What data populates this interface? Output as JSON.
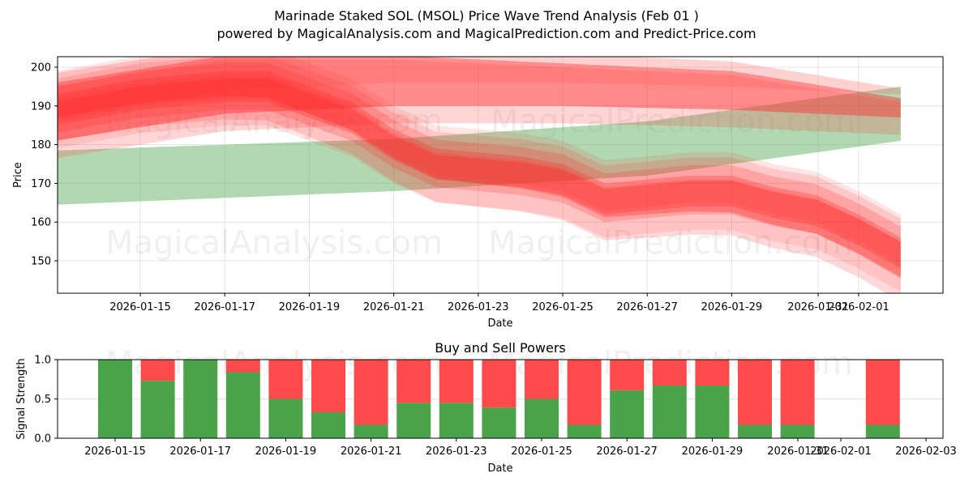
{
  "header": {
    "title": "Marinade Staked SOL (MSOL) Price Wave Trend Analysis (Feb 01 )",
    "subtitle": "powered by MagicalAnalysis.com and MagicalPrediction.com and Predict-Price.com"
  },
  "watermarks": [
    "MagicalAnalysis.com",
    "MagicalPrediction.com"
  ],
  "colors": {
    "buy": "#4aa34a",
    "sell": "#ff4b4b",
    "green_band": "#69b569",
    "red_band": "#ff2a2a"
  },
  "chart_data": [
    {
      "type": "area",
      "title": "Marinade Staked SOL (MSOL) Price Wave Trend Analysis (Feb 01 )",
      "xlabel": "Date",
      "ylabel": "Price",
      "ylim": [
        141.5,
        203
      ],
      "yticks": [
        150,
        160,
        170,
        180,
        190,
        200
      ],
      "xticks": [
        "2026-01-15",
        "2026-01-17",
        "2026-01-19",
        "2026-01-21",
        "2026-01-23",
        "2026-01-25",
        "2026-01-27",
        "2026-01-29",
        "2026-01-31",
        "2026-02-01"
      ],
      "grid": true,
      "series": [
        {
          "name": "Long-term uptrend band (green)",
          "x": [
            "2026-01-13",
            "2026-01-21",
            "2026-01-27",
            "2026-02-02"
          ],
          "upper": [
            178.5,
            181.5,
            186,
            195
          ],
          "lower": [
            164.5,
            168,
            172,
            181
          ]
        },
        {
          "name": "Long-term downtrend band (red, wide)",
          "x": [
            "2026-01-13",
            "2026-01-17",
            "2026-01-21",
            "2026-01-25",
            "2026-01-29",
            "2026-02-02"
          ],
          "upper": [
            196,
            203,
            203,
            201,
            199,
            192
          ],
          "lower": [
            181,
            188,
            190,
            190,
            189,
            187
          ]
        },
        {
          "name": "Short-term price wave (red)",
          "x": [
            "2026-01-13",
            "2026-01-15",
            "2026-01-17",
            "2026-01-18",
            "2026-01-19",
            "2026-01-20",
            "2026-01-21",
            "2026-01-22",
            "2026-01-23",
            "2026-01-24",
            "2026-01-25",
            "2026-01-26",
            "2026-01-27",
            "2026-01-28",
            "2026-01-29",
            "2026-01-30",
            "2026-01-31",
            "2026-02-01",
            "2026-02-02"
          ],
          "values": [
            189,
            193,
            195,
            195,
            191,
            187,
            180,
            175,
            174,
            173,
            171,
            166,
            167,
            168,
            168,
            165,
            163,
            158,
            152
          ]
        }
      ]
    },
    {
      "type": "bar",
      "title": "Buy and Sell Powers",
      "xlabel": "Date",
      "ylabel": "Signal Strength",
      "ylim": [
        0,
        1
      ],
      "yticks": [
        "0.0",
        "0.5",
        "1.0"
      ],
      "xticks": [
        "2026-01-15",
        "2026-01-17",
        "2026-01-19",
        "2026-01-21",
        "2026-01-23",
        "2026-01-25",
        "2026-01-27",
        "2026-01-29",
        "2026-01-31",
        "2026-02-01",
        "2026-02-03"
      ],
      "categories": [
        "2026-01-15",
        "2026-01-16",
        "2026-01-17",
        "2026-01-18",
        "2026-01-19",
        "2026-01-20",
        "2026-01-21",
        "2026-01-22",
        "2026-01-23",
        "2026-01-24",
        "2026-01-25",
        "2026-01-26",
        "2026-01-27",
        "2026-01-28",
        "2026-01-29",
        "2026-01-30",
        "2026-01-31",
        "2026-02-02"
      ],
      "series": [
        {
          "name": "Buy",
          "values": [
            1.0,
            0.73,
            1.0,
            0.84,
            0.5,
            0.33,
            0.17,
            0.45,
            0.45,
            0.39,
            0.5,
            0.17,
            0.61,
            0.67,
            0.67,
            0.17,
            0.17,
            0.17
          ]
        },
        {
          "name": "Sell",
          "values": [
            0.0,
            0.27,
            0.0,
            0.16,
            0.5,
            0.67,
            0.83,
            0.55,
            0.55,
            0.61,
            0.5,
            0.83,
            0.39,
            0.33,
            0.33,
            0.83,
            0.83,
            0.83
          ]
        }
      ],
      "grid": true
    }
  ]
}
